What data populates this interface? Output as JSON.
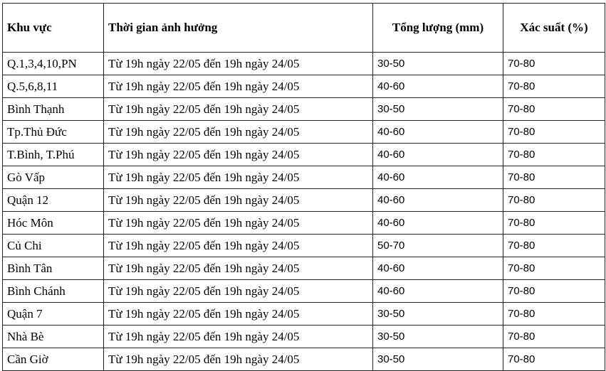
{
  "table": {
    "headers": [
      "Khu vực",
      "Thời gian ảnh hưởng",
      "Tổng lượng (mm)",
      "Xác suất (%)"
    ],
    "rows": [
      [
        "Q.1,3,4,10,PN",
        "Từ 19h ngày 22/05 đến 19h ngày 24/05",
        "30-50",
        "70-80"
      ],
      [
        "Q.5,6,8,11",
        "Từ 19h ngày 22/05 đến 19h ngày 24/05",
        "40-60",
        "70-80"
      ],
      [
        "Bình Thạnh",
        "Từ 19h ngày 22/05 đến 19h ngày 24/05",
        "30-50",
        "70-80"
      ],
      [
        "Tp.Thủ Đức",
        "Từ 19h ngày 22/05 đến 19h ngày 24/05",
        "40-60",
        "70-80"
      ],
      [
        "T.Bình, T.Phú",
        "Từ 19h ngày 22/05 đến 19h ngày 24/05",
        "40-60",
        "70-80"
      ],
      [
        "Gò Vấp",
        "Từ 19h ngày 22/05 đến 19h ngày 24/05",
        "40-60",
        "70-80"
      ],
      [
        "Quận 12",
        "Từ 19h ngày 22/05 đến 19h ngày 24/05",
        "40-60",
        "70-80"
      ],
      [
        "Hóc Môn",
        "Từ 19h ngày 22/05 đến 19h ngày 24/05",
        "40-60",
        "70-80"
      ],
      [
        "Củ Chi",
        "Từ 19h ngày 22/05 đến 19h ngày 24/05",
        "50-70",
        "70-80"
      ],
      [
        "Bình Tân",
        "Từ 19h ngày 22/05 đến 19h ngày 24/05",
        "40-60",
        "70-80"
      ],
      [
        "Bình Chánh",
        "Từ 19h ngày 22/05 đến 19h ngày 24/05",
        "40-60",
        "70-80"
      ],
      [
        "Quận 7",
        "Từ 19h ngày 22/05 đến 19h ngày 24/05",
        "30-50",
        "70-80"
      ],
      [
        "Nhà Bè",
        "Từ 19h ngày 22/05 đến 19h ngày 24/05",
        "30-50",
        "70-80"
      ],
      [
        "Cần Giờ",
        "Từ 19h ngày 22/05 đến 19h ngày 24/05",
        "30-50",
        "70-80"
      ]
    ]
  }
}
